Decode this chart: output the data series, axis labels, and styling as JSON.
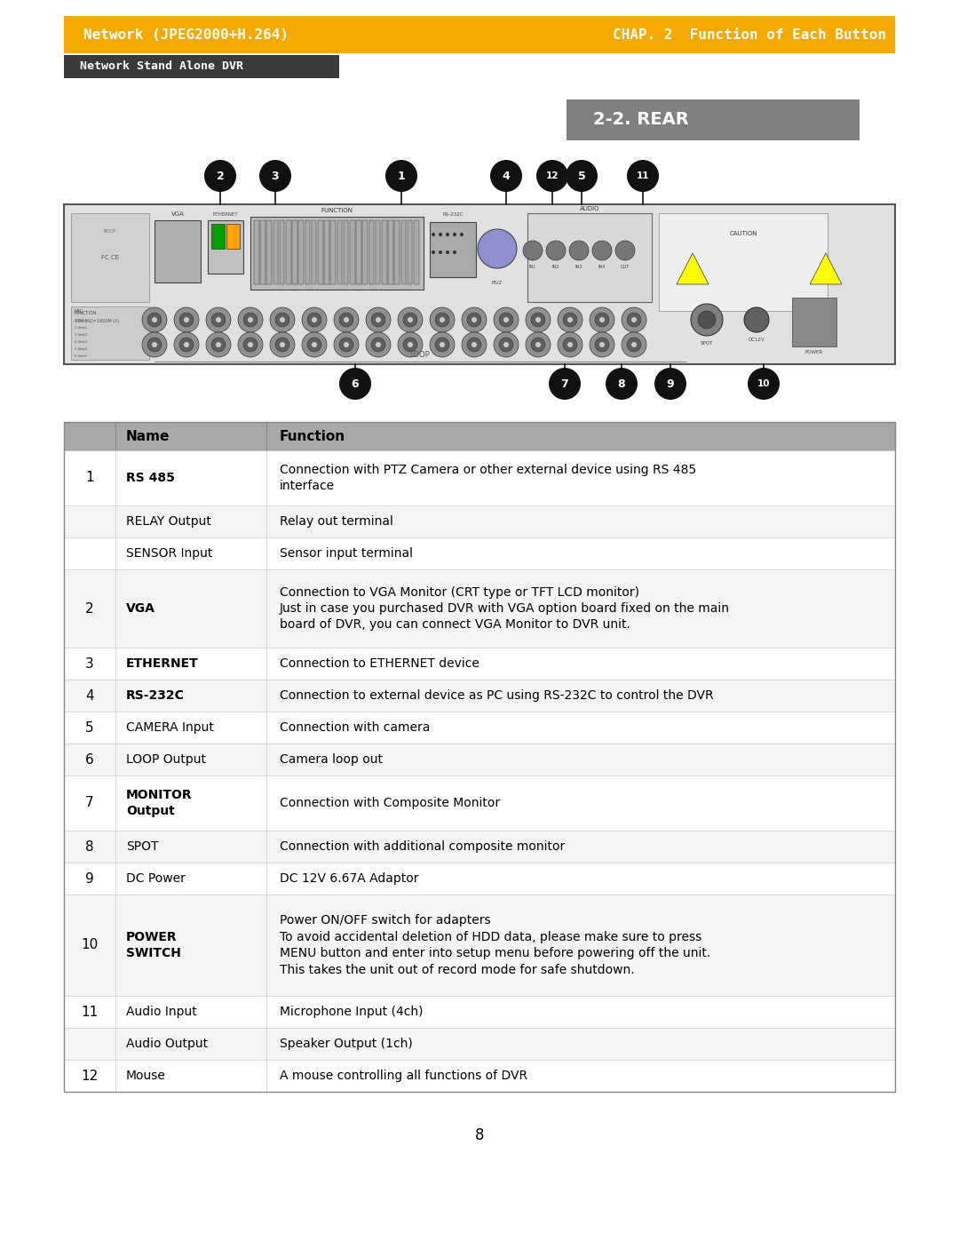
{
  "title_left": "Network (JPEG2000+H.264)",
  "title_right": "CHAP. 2  Function of Each Button",
  "subtitle": "Network Stand Alone DVR",
  "section_label": "2-2. REAR",
  "header_bg": "#F5A800",
  "subtitle_bg": "#3A3A3A",
  "section_bg": "#808080",
  "page_number": "8",
  "table_rows": [
    {
      "num": "1",
      "name": "RS 485",
      "func": "Connection with PTZ Camera or other external device using RS 485\ninterface",
      "bold_name": true,
      "num_rowspan": 3
    },
    {
      "num": "",
      "name": "RELAY Output",
      "func": "Relay out terminal",
      "bold_name": false,
      "num_rowspan": 0
    },
    {
      "num": "",
      "name": "SENSOR Input",
      "func": "Sensor input terminal",
      "bold_name": false,
      "num_rowspan": 0
    },
    {
      "num": "2",
      "name": "VGA",
      "func": "Connection to VGA Monitor (CRT type or TFT LCD monitor)\nJust in case you purchased DVR with VGA option board fixed on the main\nboard of DVR, you can connect VGA Monitor to DVR unit.",
      "bold_name": true,
      "num_rowspan": 1
    },
    {
      "num": "3",
      "name": "ETHERNET",
      "func": "Connection to ETHERNET device",
      "bold_name": true,
      "num_rowspan": 1
    },
    {
      "num": "4",
      "name": "RS-232C",
      "func": "Connection to external device as PC using RS-232C to control the DVR",
      "bold_name": true,
      "num_rowspan": 1
    },
    {
      "num": "5",
      "name": "CAMERA Input",
      "func": "Connection with camera",
      "bold_name": false,
      "num_rowspan": 1
    },
    {
      "num": "6",
      "name": "LOOP Output",
      "func": "Camera loop out",
      "bold_name": false,
      "num_rowspan": 1
    },
    {
      "num": "7",
      "name": "MONITOR\nOutput",
      "func": "Connection with Composite Monitor",
      "bold_name": true,
      "num_rowspan": 1
    },
    {
      "num": "8",
      "name": "SPOT",
      "func": "Connection with additional composite monitor",
      "bold_name": false,
      "num_rowspan": 1
    },
    {
      "num": "9",
      "name": "DC Power",
      "func": "DC 12V 6.67A Adaptor",
      "bold_name": false,
      "num_rowspan": 1
    },
    {
      "num": "10",
      "name": "POWER\nSWITCH",
      "func": "Power ON/OFF switch for adapters\nTo avoid accidental deletion of HDD data, please make sure to press\nMENU button and enter into setup menu before powering off the unit.\nThis takes the unit out of record mode for safe shutdown.",
      "bold_name": true,
      "num_rowspan": 1
    },
    {
      "num": "11",
      "name": "Audio Input",
      "func": "Microphone Input (4ch)",
      "bold_name": false,
      "num_rowspan": 2
    },
    {
      "num": "",
      "name": "Audio Output",
      "func": "Speaker Output (1ch)",
      "bold_name": false,
      "num_rowspan": 0
    },
    {
      "num": "12",
      "name": "Mouse",
      "func": "A mouse controlling all functions of DVR",
      "bold_name": false,
      "num_rowspan": 1
    }
  ]
}
